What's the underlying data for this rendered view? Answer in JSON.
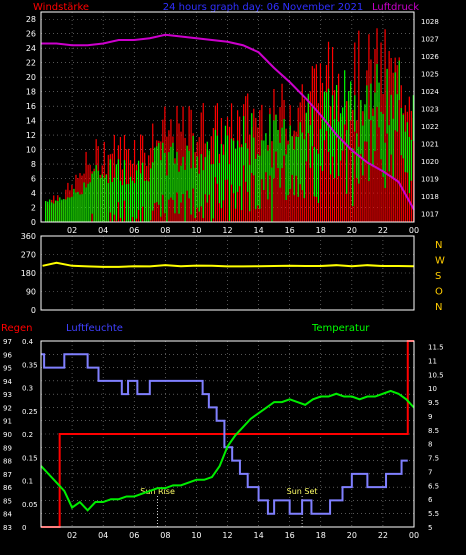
{
  "header": {
    "left_label": "Windstärke",
    "center_title": "24 hours graph day: 06 November 2021",
    "right_label": "Luftdruck"
  },
  "colors": {
    "background": "#000000",
    "frame": "#ffffff",
    "grid": "#8a8a8a",
    "tick_text": "#ffffff",
    "wind_gust": "#ff0000",
    "wind_speed": "#00ff00",
    "pressure": "#cc00cc",
    "direction": "#ffff00",
    "humidity": "#8080ff",
    "rain": "#ff0000",
    "temperature": "#00ee00",
    "label_red": "#ff0000",
    "label_blue": "#4040ff",
    "label_green": "#00ff00",
    "label_magenta": "#cc00cc",
    "direction_letters": "#ffcc00",
    "sun_text": "#ffff66"
  },
  "chart_data": [
    {
      "type": "line",
      "title": "24 hours graph day: 06 November 2021",
      "x_ticks": [
        "02",
        "04",
        "06",
        "08",
        "10",
        "12",
        "14",
        "16",
        "18",
        "20",
        "22",
        "00"
      ],
      "y_left": {
        "label": "Windstärke",
        "ticks": [
          0,
          2,
          4,
          6,
          8,
          10,
          12,
          14,
          16,
          18,
          20,
          22,
          24,
          26,
          28
        ],
        "lim": [
          0,
          29
        ]
      },
      "y_right": {
        "label": "Luftdruck",
        "ticks": [
          1017,
          1018,
          1019,
          1020,
          1021,
          1022,
          1023,
          1024,
          1025,
          1026,
          1027,
          1028
        ],
        "lim": [
          1016.5,
          1028.5
        ]
      },
      "grid": true,
      "x_hours": [
        1,
        2,
        3,
        4,
        5,
        6,
        7,
        8,
        9,
        10,
        11,
        12,
        13,
        14,
        15,
        16,
        17,
        18,
        19,
        20,
        21,
        22,
        23,
        24
      ],
      "series": [
        {
          "name": "Luftdruck",
          "axis": "right",
          "values": [
            1026.7,
            1026.6,
            1026.6,
            1026.7,
            1026.9,
            1026.9,
            1027.0,
            1027.2,
            1027.1,
            1027.0,
            1026.9,
            1026.8,
            1026.6,
            1026.2,
            1025.3,
            1024.5,
            1023.6,
            1022.6,
            1021.5,
            1020.6,
            1019.9,
            1019.4,
            1018.8,
            1017.2
          ]
        },
        {
          "name": "gust",
          "axis": "left",
          "values": [
            3,
            4,
            5,
            9,
            11,
            11,
            12,
            12,
            14,
            14,
            15,
            15,
            14,
            16,
            17,
            16,
            18,
            20,
            22,
            22,
            23,
            23,
            24,
            22
          ]
        },
        {
          "name": "speed",
          "axis": "left",
          "values": [
            1,
            1,
            2,
            4,
            6,
            6,
            6,
            7,
            8,
            8,
            9,
            9,
            10,
            11,
            11,
            11,
            13,
            14,
            15,
            16,
            16,
            17,
            18,
            17
          ]
        }
      ]
    },
    {
      "type": "line",
      "y_left": {
        "ticks": [
          0,
          90,
          180,
          270,
          360
        ],
        "lim": [
          0,
          360
        ]
      },
      "y_right_letters": [
        "N",
        "W",
        "S",
        "O",
        "N"
      ],
      "grid": true,
      "x_hours": [
        0.1,
        1,
        2,
        3,
        4,
        5,
        6,
        7,
        8,
        9,
        10,
        11,
        12,
        13,
        14,
        15,
        16,
        17,
        18,
        19,
        20,
        21,
        22,
        23,
        24
      ],
      "series": [
        {
          "name": "direction",
          "values": [
            215,
            230,
            215,
            212,
            210,
            210,
            213,
            212,
            218,
            213,
            216,
            215,
            212,
            212,
            213,
            214,
            215,
            214,
            214,
            218,
            213,
            218,
            214,
            214,
            213
          ]
        }
      ]
    },
    {
      "type": "line",
      "labels": {
        "rain": "Regen",
        "humidity": "Luftfeuchte",
        "temperature": "Temperatur"
      },
      "y_axis_1": {
        "label": "Regen",
        "ticks": [
          0,
          0.05,
          0.1,
          0.15,
          0.2,
          0.25,
          0.3,
          0.35,
          0.4
        ],
        "lim": [
          0,
          0.4
        ]
      },
      "y_axis_2": {
        "label": "Luftfeuchte",
        "ticks": [
          83,
          84,
          85,
          86,
          87,
          88,
          89,
          90,
          91,
          92,
          93,
          94,
          95,
          96,
          97
        ],
        "lim": [
          83,
          97
        ]
      },
      "y_axis_right": {
        "label": "Temperatur",
        "ticks": [
          5,
          5.5,
          6,
          6.5,
          7,
          7.5,
          8,
          8.5,
          9,
          9.5,
          10,
          10.5,
          11,
          11.5
        ],
        "lim": [
          5,
          11.7
        ]
      },
      "grid": true,
      "annotations": [
        {
          "text": "Sun Rise",
          "x_hour": 7.5
        },
        {
          "text": "Sun Set",
          "x_hour": 16.8
        }
      ],
      "series": [
        {
          "name": "rain",
          "x": [
            0,
            1.2,
            1.2,
            23.6,
            23.6,
            24
          ],
          "values": [
            0,
            0,
            0.2,
            0.2,
            0.4,
            0.4
          ]
        },
        {
          "name": "humidity",
          "x": [
            0,
            0.2,
            0.2,
            1.5,
            1.5,
            3,
            3,
            3.7,
            3.7,
            5.2,
            5.2,
            5.6,
            5.6,
            6.2,
            6.2,
            7,
            7,
            8,
            8,
            10.4,
            10.4,
            10.8,
            10.8,
            11.3,
            11.3,
            11.8,
            11.8,
            12.3,
            12.3,
            12.8,
            12.8,
            13.3,
            13.3,
            14,
            14,
            14.6,
            14.6,
            15,
            15,
            16,
            16,
            16.8,
            16.8,
            17.4,
            17.4,
            18.6,
            18.6,
            19.4,
            19.4,
            20,
            20,
            21,
            21,
            22.2,
            22.2,
            23.2,
            23.2,
            23.6
          ],
          "values": [
            96,
            96,
            95,
            95,
            96,
            96,
            95,
            95,
            94,
            94,
            93,
            93,
            94,
            94,
            93,
            93,
            94,
            94,
            94,
            94,
            93,
            93,
            92,
            92,
            91,
            91,
            89,
            89,
            88,
            88,
            87,
            87,
            86,
            86,
            85,
            85,
            84,
            84,
            85,
            85,
            84,
            84,
            85,
            85,
            84,
            84,
            85,
            85,
            86,
            86,
            87,
            87,
            86,
            86,
            87,
            87,
            88,
            88
          ]
        },
        {
          "name": "temperature",
          "x": [
            0,
            0.5,
            1,
            1.5,
            2,
            2.5,
            3,
            3.5,
            4,
            4.5,
            5,
            5.5,
            6,
            6.5,
            7,
            7.5,
            8,
            8.5,
            9,
            9.5,
            10,
            10.5,
            11,
            11.5,
            12,
            12.5,
            13,
            13.5,
            14,
            14.5,
            15,
            15.5,
            16,
            16.5,
            17,
            17.5,
            18,
            18.5,
            19,
            19.5,
            20,
            20.5,
            21,
            21.5,
            22,
            22.5,
            23,
            23.5,
            24
          ],
          "values": [
            7.2,
            6.9,
            6.6,
            6.3,
            5.7,
            5.9,
            5.6,
            5.9,
            5.9,
            6.0,
            6.0,
            6.1,
            6.1,
            6.2,
            6.3,
            6.4,
            6.4,
            6.5,
            6.5,
            6.6,
            6.7,
            6.7,
            6.8,
            7.2,
            7.9,
            8.3,
            8.6,
            8.9,
            9.1,
            9.3,
            9.5,
            9.5,
            9.6,
            9.5,
            9.4,
            9.6,
            9.7,
            9.7,
            9.8,
            9.7,
            9.7,
            9.6,
            9.7,
            9.7,
            9.8,
            9.9,
            9.8,
            9.6,
            9.3
          ]
        }
      ]
    }
  ]
}
